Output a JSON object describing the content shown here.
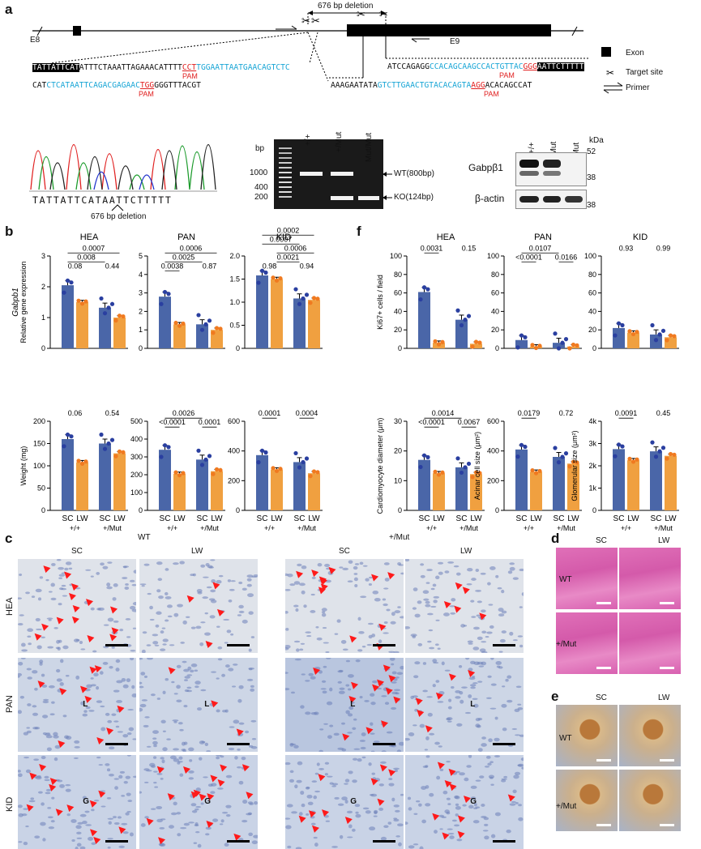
{
  "panels": {
    "a": "a",
    "b": "b",
    "c": "c",
    "d": "d",
    "e": "e",
    "f": "f"
  },
  "gene_map": {
    "deletion_label": "676 bp deletion",
    "exon_left": "E8",
    "exon_right": "E9",
    "legend": {
      "exon": "Exon",
      "target": "Target site",
      "primer": "Primer"
    },
    "seq_top_left": {
      "hl": "TATTATTCAT",
      "plain": "ATTTCTAAATTAGAAACATTTT",
      "pam": "CCT",
      "cyan": "TGGAATTAATGAACAGTCTC"
    },
    "seq_bottom_left": {
      "plain1": "CAT",
      "cyan": "CTCATAATTCAGACGAGAAC",
      "pam": "TGG",
      "plain2": "GGGTTTACGT"
    },
    "seq_top_right": {
      "plain": "ATCCAGAGG",
      "cyan": "CCACAGCAAGCCACTGTTAC",
      "pam": "GGG",
      "hl": "AATTCTTTTT"
    },
    "seq_bottom_right": {
      "plain1": "AAAGAATATA",
      "cyan": "GTCTTGAACTGTACACAGTA",
      "pam": "AGG",
      "plain2": "ACACAGCCAT"
    },
    "pam_label": "PAM"
  },
  "chromatogram": {
    "sequence": "TATTATTCATAATTCTTTTT",
    "deletion_label": "676 bp deletion"
  },
  "gel": {
    "bp_label": "bp",
    "ladder": [
      "1000",
      "400",
      "200"
    ],
    "lanes": [
      "+/+",
      "+/Mut",
      "Mut/Mut"
    ],
    "bands": {
      "wt": "WT(800bp)",
      "ko": "KO(124bp)"
    }
  },
  "western": {
    "lanes": [
      "+/+",
      "+/Mut",
      "Mut/Mut"
    ],
    "kda": "kDa",
    "markers": [
      "52",
      "38",
      "38"
    ],
    "rows": [
      "Gabpβ1",
      "β-actin"
    ]
  },
  "colors": {
    "sc": "#4a66a8",
    "lw": "#f0a040",
    "dot_sc": "#2a3fa0",
    "dot_lw": "#f07a20"
  },
  "chart_data": [
    {
      "type": "bar",
      "tissue": "HEA",
      "ylabel": "Gabpb1 Relative gene expression",
      "ylim": [
        0,
        3
      ],
      "yticks": [
        "0",
        "1",
        "2",
        "3"
      ],
      "categories": [
        "SC +/+",
        "LW +/+",
        "SC +/Mut",
        "LW +/Mut"
      ],
      "values": [
        2.05,
        1.5,
        1.32,
        1.0
      ],
      "pvalues": [
        "0.0007",
        "0.008",
        "0.08",
        "0.44"
      ]
    },
    {
      "type": "bar",
      "tissue": "PAN",
      "ylim": [
        0,
        5
      ],
      "yticks": [
        "0",
        "1",
        "2",
        "3",
        "4",
        "5"
      ],
      "categories": [
        "SC +/+",
        "LW +/+",
        "SC +/Mut",
        "LW +/Mut"
      ],
      "values": [
        2.8,
        1.3,
        1.3,
        1.0
      ],
      "pvalues": [
        "0.0006",
        "0.0025",
        "0.0038",
        "0.87"
      ]
    },
    {
      "type": "bar",
      "tissue": "KID",
      "ylim": [
        0,
        2.0
      ],
      "yticks": [
        "0",
        "0.5",
        "1.0",
        "1.5",
        "2.0"
      ],
      "categories": [
        "SC +/+",
        "LW +/+",
        "SC +/Mut",
        "LW +/Mut"
      ],
      "values": [
        1.58,
        1.5,
        1.08,
        1.05
      ],
      "pvalues": [
        "0.0002",
        "0.0007",
        "0.0006",
        "0.0021",
        "0.98",
        "0.94"
      ]
    },
    {
      "type": "bar",
      "ylabel": "Weight (mg)",
      "ylim": [
        0,
        200
      ],
      "yticks": [
        "0",
        "50",
        "100",
        "150",
        "200"
      ],
      "categories": [
        "SC +/+",
        "LW +/+",
        "SC +/Mut",
        "LW +/Mut"
      ],
      "values": [
        160,
        108,
        150,
        128
      ],
      "pvalues": [
        "0.06",
        "0.54"
      ]
    },
    {
      "type": "bar",
      "ylim": [
        0,
        500
      ],
      "yticks": [
        "0",
        "100",
        "200",
        "300",
        "400",
        "500"
      ],
      "categories": [
        "SC +/+",
        "LW +/+",
        "SC +/Mut",
        "LW +/Mut"
      ],
      "values": [
        340,
        205,
        285,
        220
      ],
      "pvalues": [
        "0.0026",
        "<0.0001",
        "0.0001"
      ]
    },
    {
      "type": "bar",
      "ylim": [
        0,
        600
      ],
      "yticks": [
        "0",
        "200",
        "400",
        "600"
      ],
      "categories": [
        "SC +/+",
        "LW +/+",
        "SC +/Mut",
        "LW +/Mut"
      ],
      "values": [
        372,
        275,
        325,
        250
      ],
      "pvalues": [
        "0.0001",
        "0.0004"
      ]
    },
    {
      "type": "bar",
      "tissue": "HEA",
      "ylabel": "Ki67+ cells / field",
      "ylim": [
        0,
        100
      ],
      "yticks": [
        "0",
        "20",
        "40",
        "60",
        "80",
        "100"
      ],
      "categories": [
        "SC +/+",
        "LW +/+",
        "SC +/Mut",
        "LW +/Mut"
      ],
      "values": [
        61,
        6,
        31,
        5
      ],
      "pvalues": [
        "0.0031",
        "0.15"
      ]
    },
    {
      "type": "bar",
      "tissue": "PAN",
      "ylim": [
        0,
        100
      ],
      "yticks": [
        "0",
        "20",
        "40",
        "60",
        "80",
        "100"
      ],
      "categories": [
        "SC +/+",
        "LW +/+",
        "SC +/Mut",
        "LW +/Mut"
      ],
      "values": [
        9,
        2,
        6,
        2
      ],
      "pvalues": [
        "0.0107",
        "<0.0001",
        "0.0166"
      ]
    },
    {
      "type": "bar",
      "tissue": "KID",
      "ylim": [
        0,
        100
      ],
      "yticks": [
        "0",
        "20",
        "40",
        "60",
        "80",
        "100"
      ],
      "categories": [
        "SC +/+",
        "LW +/+",
        "SC +/Mut",
        "LW +/Mut"
      ],
      "values": [
        22,
        17,
        15,
        12
      ],
      "pvalues": [
        "0.93",
        "0.99"
      ]
    },
    {
      "type": "bar",
      "ylabel": "Cardiomyocyte diameter (μm)",
      "ylim": [
        0,
        30
      ],
      "yticks": [
        "0",
        "10",
        "20",
        "30"
      ],
      "categories": [
        "SC +/+",
        "LW +/+",
        "SC +/Mut",
        "LW +/Mut"
      ],
      "values": [
        17,
        12.5,
        14.5,
        12.2
      ],
      "pvalues": [
        "0.0014",
        "<0.0001",
        "0.0067"
      ]
    },
    {
      "type": "bar",
      "ylabel": "Acinar cell size (μm²)",
      "ylim": [
        0,
        600
      ],
      "yticks": [
        "0",
        "200",
        "400",
        "600"
      ],
      "categories": [
        "SC +/+",
        "LW +/+",
        "SC +/Mut",
        "LW +/Mut"
      ],
      "values": [
        410,
        260,
        360,
        315
      ],
      "pvalues": [
        "0.0179",
        "0.72"
      ]
    },
    {
      "type": "bar",
      "ylabel": "Glomerular size (μm²)",
      "ylim": [
        0,
        4000
      ],
      "yticks": [
        "0",
        "1k",
        "2k",
        "3k",
        "4k"
      ],
      "categories": [
        "SC +/+",
        "LW +/+",
        "SC +/Mut",
        "LW +/Mut"
      ],
      "values": [
        2750,
        2250,
        2650,
        2450
      ],
      "pvalues": [
        "0.0091",
        "0.45"
      ]
    }
  ],
  "xaxis": {
    "sc": "SC",
    "lw": "LW",
    "wt": "+/+",
    "mut": "+/Mut"
  },
  "micro": {
    "wt": "WT",
    "mut": "+/Mut",
    "sc": "SC",
    "lw": "LW",
    "rows": [
      "HEA",
      "PAN",
      "KID"
    ],
    "L": "L",
    "G": "G"
  }
}
